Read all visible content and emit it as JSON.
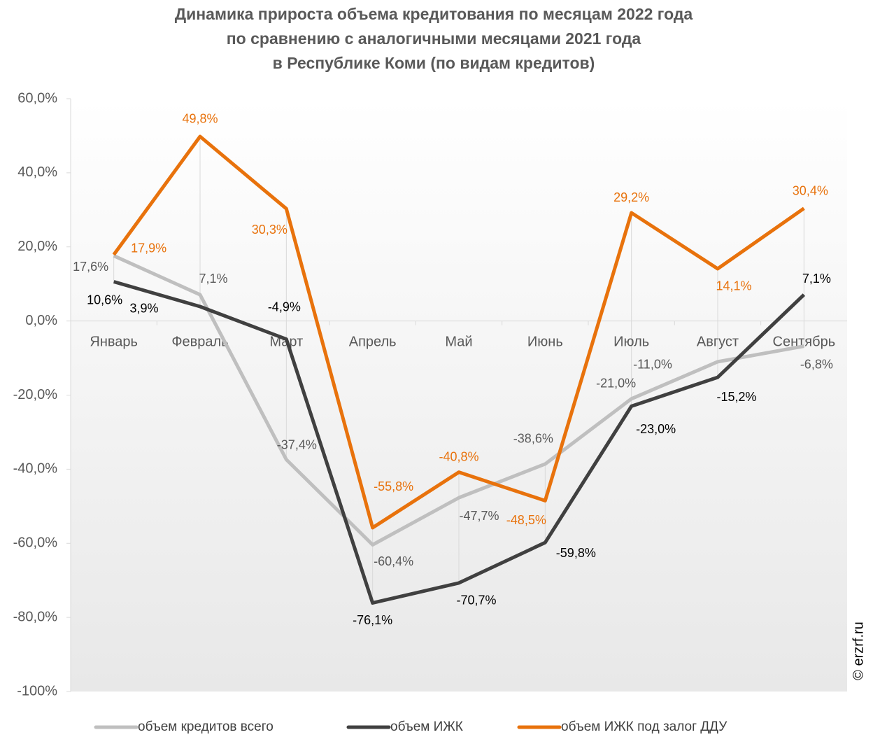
{
  "chart_data": {
    "type": "line",
    "title": [
      "Динамика прироста объема кредитования по месяцам 2022 года",
      "по сравнению с аналогичными месяцами 2021 года",
      "в Республике Коми (по видам кредитов)"
    ],
    "watermark": "© erzrf.ru",
    "categories": [
      "Январь",
      "Февраль",
      "Март",
      "Апрель",
      "Май",
      "Июнь",
      "Июль",
      "Август",
      "Сентябрь"
    ],
    "series": [
      {
        "name": "объем кредитов всего",
        "color": "#bfbfbf",
        "label_color": "#595959",
        "values": [
          17.6,
          7.1,
          -37.4,
          -60.4,
          -47.7,
          -38.6,
          -21.0,
          -11.0,
          -6.8
        ],
        "value_labels": [
          "17,6%",
          "7,1%",
          "-37,4%",
          "-60,4%",
          "-47,7%",
          "-38,6%",
          "-21,0%",
          "-11,0%",
          "-6,8%"
        ]
      },
      {
        "name": "объем ИЖК",
        "color": "#404040",
        "label_color": "#000000",
        "values": [
          10.6,
          3.9,
          -4.9,
          -76.1,
          -70.7,
          -59.8,
          -23.0,
          -15.2,
          7.1
        ],
        "value_labels": [
          "10,6%",
          "3,9%",
          "-4,9%",
          "-76,1%",
          "-70,7%",
          "-59,8%",
          "-23,0%",
          "-15,2%",
          "7,1%"
        ]
      },
      {
        "name": "объем ИЖК под залог ДДУ",
        "color": "#e8720c",
        "label_color": "#e8720c",
        "values": [
          17.9,
          49.8,
          30.3,
          -55.8,
          -40.8,
          -48.5,
          29.2,
          14.1,
          30.4
        ],
        "value_labels": [
          "17,9%",
          "49,8%",
          "30,3%",
          "-55,8%",
          "-40,8%",
          "-48,5%",
          "29,2%",
          "14,1%",
          "30,4%"
        ]
      }
    ],
    "ylim": [
      -100,
      60
    ],
    "yticks": [
      {
        "value": -100,
        "label": "-100%"
      },
      {
        "value": -80,
        "label": "-80,0%"
      },
      {
        "value": -60,
        "label": "-60,0%"
      },
      {
        "value": -40,
        "label": "-40,0%"
      },
      {
        "value": -20,
        "label": "-20,0%"
      },
      {
        "value": 0,
        "label": "0,0%"
      },
      {
        "value": 20,
        "label": "20,0%"
      },
      {
        "value": 40,
        "label": "40,0%"
      },
      {
        "value": 60,
        "label": "60,0%"
      }
    ],
    "legend": "bottom"
  }
}
